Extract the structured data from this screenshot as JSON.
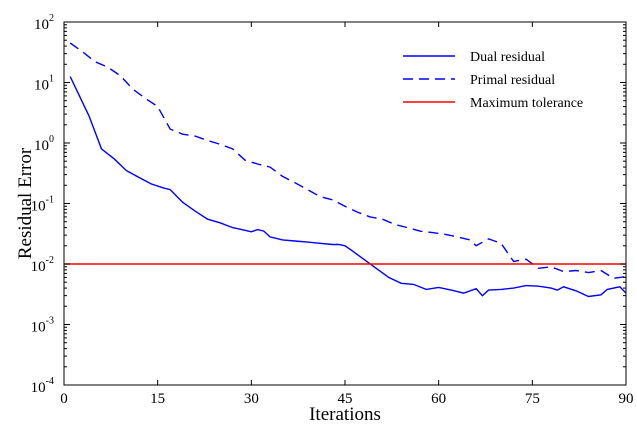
{
  "chart_data": {
    "type": "line",
    "title": "",
    "xlabel": "Iterations",
    "ylabel": "Residual Error",
    "xlim": [
      0,
      90
    ],
    "ylim": [
      0.0001,
      100
    ],
    "yscale": "log",
    "xticks": [
      "0",
      "15",
      "30",
      "45",
      "60",
      "75",
      "90"
    ],
    "yticks": [
      {
        "base": "10",
        "exp": "2"
      },
      {
        "base": "10",
        "exp": "1"
      },
      {
        "base": "10",
        "exp": "0"
      },
      {
        "base": "10",
        "exp": "-1"
      },
      {
        "base": "10",
        "exp": "-2"
      },
      {
        "base": "10",
        "exp": "-3"
      },
      {
        "base": "10",
        "exp": "-4"
      }
    ],
    "grid": false,
    "legend_position": "top-right",
    "series": [
      {
        "name": "Dual residual",
        "color": "#0000ff",
        "style": "solid",
        "x": [
          1,
          4,
          6,
          8,
          10,
          12,
          14,
          16,
          17,
          19,
          21,
          23,
          25,
          27,
          29,
          30,
          31,
          32,
          33,
          35,
          37,
          39,
          41,
          43,
          44,
          45,
          46,
          48,
          50,
          52,
          54,
          56,
          58,
          60,
          62,
          64,
          66,
          67,
          68,
          70,
          72,
          74,
          76,
          78,
          79,
          80,
          82,
          84,
          86,
          87,
          89,
          90
        ],
        "y": [
          12.5,
          2.8,
          0.8,
          0.55,
          0.35,
          0.27,
          0.21,
          0.18,
          0.17,
          0.105,
          0.075,
          0.055,
          0.048,
          0.04,
          0.036,
          0.034,
          0.037,
          0.035,
          0.028,
          0.025,
          0.024,
          0.023,
          0.022,
          0.021,
          0.021,
          0.02,
          0.017,
          0.012,
          0.0085,
          0.006,
          0.0048,
          0.0046,
          0.0038,
          0.0041,
          0.0037,
          0.0033,
          0.0039,
          0.003,
          0.0037,
          0.0038,
          0.004,
          0.0044,
          0.0043,
          0.004,
          0.0037,
          0.0042,
          0.0036,
          0.0029,
          0.0031,
          0.0038,
          0.0042,
          0.0033
        ]
      },
      {
        "name": "Primal residual",
        "color": "#0000ff",
        "style": "dashed",
        "x": [
          1,
          3,
          5,
          7,
          9,
          11,
          13,
          15,
          17,
          19,
          21,
          23,
          25,
          27,
          29,
          31,
          33,
          35,
          37,
          39,
          41,
          43,
          45,
          47,
          49,
          51,
          53,
          55,
          57,
          59,
          61,
          63,
          65,
          66,
          68,
          70,
          72,
          74,
          76,
          78,
          80,
          82,
          84,
          86,
          88,
          90
        ],
        "y": [
          45,
          32,
          22,
          18,
          13,
          7.8,
          5.5,
          4,
          1.7,
          1.4,
          1.3,
          1.1,
          0.95,
          0.8,
          0.52,
          0.45,
          0.4,
          0.28,
          0.22,
          0.17,
          0.13,
          0.115,
          0.09,
          0.072,
          0.06,
          0.055,
          0.045,
          0.04,
          0.035,
          0.033,
          0.031,
          0.028,
          0.025,
          0.02,
          0.026,
          0.022,
          0.011,
          0.012,
          0.0085,
          0.009,
          0.0075,
          0.0078,
          0.0072,
          0.0078,
          0.0058,
          0.0062
        ]
      },
      {
        "name": "Maximum tolerance",
        "color": "#ff0000",
        "style": "solid",
        "x": [
          0,
          90
        ],
        "y": [
          0.01,
          0.01
        ]
      }
    ]
  }
}
